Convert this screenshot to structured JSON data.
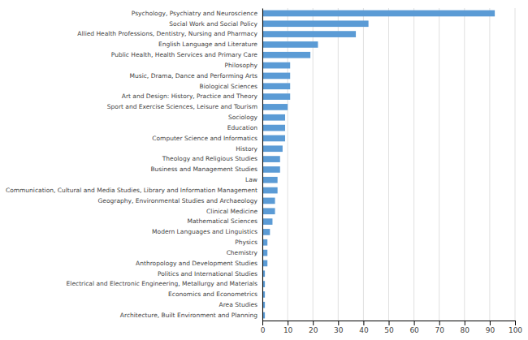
{
  "chart_data": {
    "type": "bar",
    "orientation": "horizontal",
    "categories": [
      "Architecture, Built Environment and Planning",
      "Area Studies",
      "Economics and Econometrics",
      "Electrical and Electronic Engineering, Metallurgy and Materials",
      "Politics and International Studies",
      "Anthropology and Development Studies",
      "Chemistry",
      "Physics",
      "Modern Languages and Linguistics",
      "Mathematical Sciences",
      "Clinical Medicine",
      "Geography, Environmental Studies and Archaeology",
      "Communication, Cultural and Media Studies, Library and Information Management",
      "Law",
      "Business and Management Studies",
      "Theology and Religious Studies",
      "History",
      "Computer Science and Informatics",
      "Education",
      "Sociology",
      "Sport and Exercise Sciences, Leisure and Tourism",
      "Art and Design: History, Practice and Theory",
      "Biological Sciences",
      "Music, Drama, Dance and Performing Arts",
      "Philosophy",
      "Public Health, Health Services and Primary Care",
      "English Language and Literature",
      "Allied Health Professions, Dentistry, Nursing and Pharmacy",
      "Social Work and Social Policy",
      "Psychology, Psychiatry and Neuroscience"
    ],
    "values": [
      1,
      1,
      1,
      1,
      1,
      2,
      2,
      2,
      3,
      4,
      5,
      5,
      6,
      6,
      7,
      7,
      8,
      9,
      9,
      9,
      10,
      11,
      11,
      11,
      11,
      19,
      22,
      37,
      42,
      92
    ],
    "color": "#5b9bd5",
    "xlim": [
      0,
      100
    ],
    "xticks": [
      0,
      10,
      20,
      30,
      40,
      50,
      60,
      70,
      80,
      90,
      100
    ],
    "grid": true
  }
}
